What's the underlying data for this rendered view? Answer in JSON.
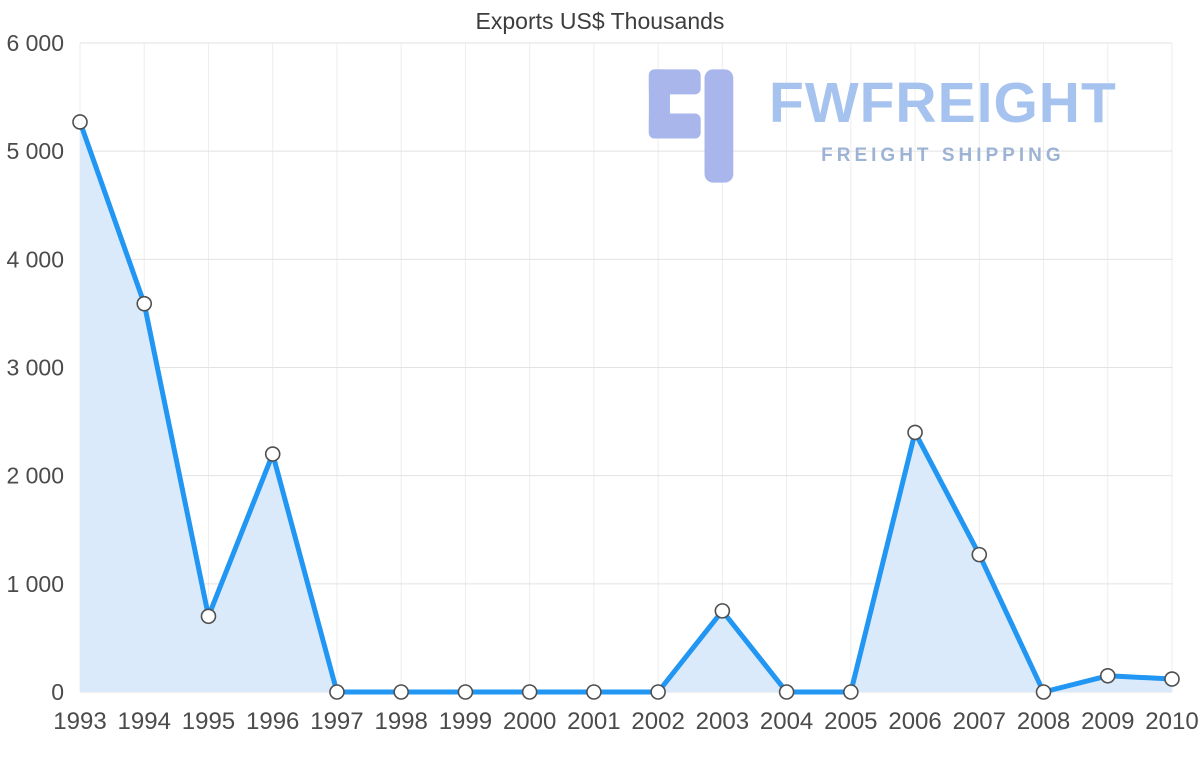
{
  "title": "Exports US$ Thousands",
  "logo": {
    "brand": "FWFREIGHT",
    "tagline": "FREIGHT SHIPPING",
    "brand_color": "#a6c2ee",
    "tagline_color": "#9db3d5",
    "glyph_color": "#a9b6ec"
  },
  "colors": {
    "line": "#2196f3",
    "area": "#daeafb",
    "grid_h": "#e2e2e2",
    "grid_v": "#ededed",
    "axis_text": "#4b4b4b",
    "point_fill": "#ffffff",
    "point_stroke": "#4f4f4f"
  },
  "chart_data": {
    "type": "area",
    "title": "Exports US$ Thousands",
    "x": [
      "1993",
      "1994",
      "1995",
      "1996",
      "1997",
      "1998",
      "1999",
      "2000",
      "2001",
      "2002",
      "2003",
      "2004",
      "2005",
      "2006",
      "2007",
      "2008",
      "2009",
      "2010"
    ],
    "values": [
      5270,
      3590,
      700,
      2200,
      0,
      0,
      0,
      0,
      0,
      0,
      750,
      0,
      0,
      2400,
      1270,
      0,
      150,
      120
    ],
    "xlabel": "",
    "ylabel": "",
    "ylim": [
      0,
      6000
    ],
    "ytick_values": [
      0,
      1000,
      2000,
      3000,
      4000,
      5000,
      6000
    ],
    "ytick_labels": [
      "0",
      "1 000",
      "2 000",
      "3 000",
      "4 000",
      "5 000",
      "6 000"
    ],
    "grid": true,
    "legend_position": "none"
  }
}
